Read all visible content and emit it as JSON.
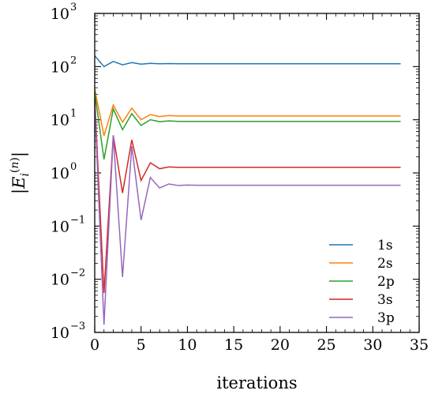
{
  "chart_data": {
    "type": "line",
    "title": "",
    "xlabel": "iterations",
    "ylabel": "|E_i^(n)|",
    "xlim": [
      0,
      35
    ],
    "ylim": [
      0.001,
      1000
    ],
    "yscale": "log",
    "grid": false,
    "legend_position": "bottom-right",
    "x_ticks": [
      "0",
      "5",
      "10",
      "15",
      "20",
      "25",
      "30",
      "35"
    ],
    "y_ticks": [
      {
        "base": "10",
        "exp": "−3"
      },
      {
        "base": "10",
        "exp": "−2"
      },
      {
        "base": "10",
        "exp": "−1"
      },
      {
        "base": "10",
        "exp": "0"
      },
      {
        "base": "10",
        "exp": "1"
      },
      {
        "base": "10",
        "exp": "2"
      },
      {
        "base": "10",
        "exp": "3"
      }
    ],
    "x": [
      0,
      1,
      2,
      3,
      4,
      5,
      6,
      7,
      8,
      9,
      10,
      11,
      12,
      13,
      14,
      15,
      16,
      17,
      18,
      19,
      20,
      21,
      22,
      23,
      24,
      25,
      26,
      27,
      28,
      29,
      30,
      31,
      32,
      33
    ],
    "series": [
      {
        "name": "1s",
        "color": "#1f77b4",
        "values": [
          160,
          100,
          125,
          108,
          119,
          111,
          115,
          113,
          114,
          113,
          113,
          113,
          113,
          113,
          113,
          113,
          113,
          113,
          113,
          113,
          113,
          113,
          113,
          113,
          113,
          113,
          113,
          113,
          113,
          113,
          113,
          113,
          113,
          113
        ]
      },
      {
        "name": "2s",
        "color": "#ff7f0e",
        "values": [
          38,
          5,
          19,
          9,
          16.5,
          10,
          12.5,
          11.5,
          12,
          11.8,
          11.8,
          11.8,
          11.8,
          11.8,
          11.8,
          11.8,
          11.8,
          11.8,
          11.8,
          11.8,
          11.8,
          11.8,
          11.8,
          11.8,
          11.8,
          11.8,
          11.8,
          11.8,
          11.8,
          11.8,
          11.8,
          11.8,
          11.8,
          11.8
        ]
      },
      {
        "name": "2p",
        "color": "#2ca02c",
        "values": [
          33,
          1.8,
          16,
          6.5,
          13,
          7.8,
          10,
          9.2,
          9.5,
          9.3,
          9.3,
          9.3,
          9.3,
          9.3,
          9.3,
          9.3,
          9.3,
          9.3,
          9.3,
          9.3,
          9.3,
          9.3,
          9.3,
          9.3,
          9.3,
          9.3,
          9.3,
          9.3,
          9.3,
          9.3,
          9.3,
          9.3,
          9.3,
          9.3
        ]
      },
      {
        "name": "3s",
        "color": "#d62728",
        "values": [
          25,
          0.0055,
          5.1,
          0.42,
          4.2,
          0.72,
          1.55,
          1.2,
          1.3,
          1.27,
          1.27,
          1.27,
          1.27,
          1.27,
          1.27,
          1.27,
          1.27,
          1.27,
          1.27,
          1.27,
          1.27,
          1.27,
          1.27,
          1.27,
          1.27,
          1.27,
          1.27,
          1.27,
          1.27,
          1.27,
          1.27,
          1.27,
          1.27,
          1.27
        ]
      },
      {
        "name": "3p",
        "color": "#9467bd",
        "values": [
          20,
          0.0014,
          5,
          0.011,
          3.2,
          0.13,
          0.82,
          0.52,
          0.62,
          0.58,
          0.59,
          0.585,
          0.585,
          0.585,
          0.585,
          0.585,
          0.585,
          0.585,
          0.585,
          0.585,
          0.585,
          0.585,
          0.585,
          0.585,
          0.585,
          0.585,
          0.585,
          0.585,
          0.585,
          0.585,
          0.585,
          0.585,
          0.585,
          0.585
        ]
      }
    ]
  }
}
